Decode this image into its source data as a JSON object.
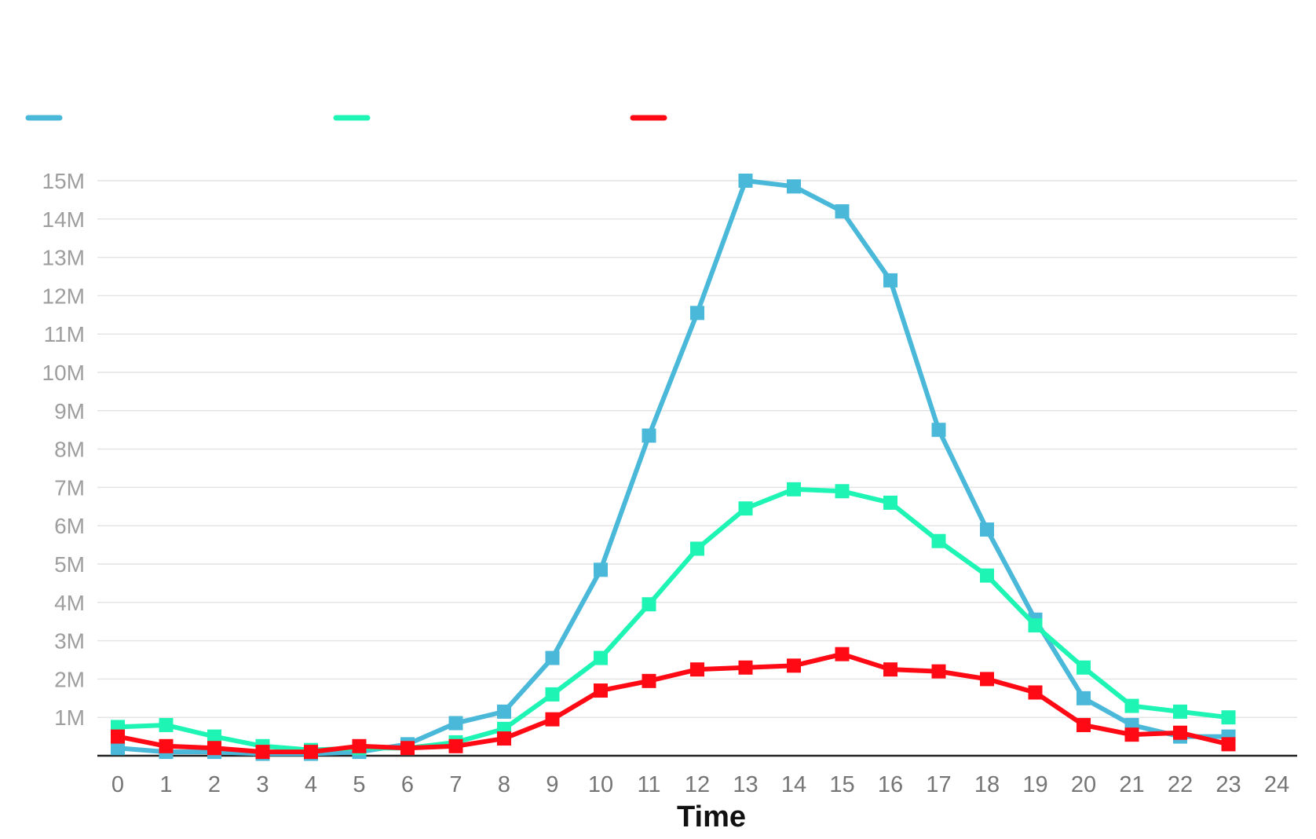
{
  "chart_data": {
    "type": "line",
    "xlabel": "Time",
    "ylabel": "",
    "x": [
      0,
      1,
      2,
      3,
      4,
      5,
      6,
      7,
      8,
      9,
      10,
      11,
      12,
      13,
      14,
      15,
      16,
      17,
      18,
      19,
      20,
      21,
      22,
      23
    ],
    "xticks": [
      0,
      1,
      2,
      3,
      4,
      5,
      6,
      7,
      8,
      9,
      10,
      11,
      12,
      13,
      14,
      15,
      16,
      17,
      18,
      19,
      20,
      21,
      22,
      23,
      24
    ],
    "xlim": [
      0,
      24
    ],
    "ylim": [
      0,
      15000000
    ],
    "yticks": [
      {
        "value": 1000000,
        "label": "1M"
      },
      {
        "value": 2000000,
        "label": "2M"
      },
      {
        "value": 3000000,
        "label": "3M"
      },
      {
        "value": 4000000,
        "label": "4M"
      },
      {
        "value": 5000000,
        "label": "5M"
      },
      {
        "value": 6000000,
        "label": "6M"
      },
      {
        "value": 7000000,
        "label": "7M"
      },
      {
        "value": 8000000,
        "label": "8M"
      },
      {
        "value": 9000000,
        "label": "9M"
      },
      {
        "value": 10000000,
        "label": "10M"
      },
      {
        "value": 11000000,
        "label": "11M"
      },
      {
        "value": 12000000,
        "label": "12M"
      },
      {
        "value": 13000000,
        "label": "13M"
      },
      {
        "value": 14000000,
        "label": "14M"
      },
      {
        "value": 15000000,
        "label": "15M"
      }
    ],
    "grid": true,
    "legend_position": "top-left",
    "marker": "square",
    "series": [
      {
        "color": "#4ab8d8",
        "values": [
          200000,
          100000,
          100000,
          50000,
          50000,
          100000,
          300000,
          850000,
          1150000,
          2550000,
          4850000,
          8350000,
          11550000,
          15000000,
          14850000,
          14200000,
          12400000,
          8500000,
          5900000,
          3550000,
          1500000,
          800000,
          500000,
          500000
        ]
      },
      {
        "color": "#1ef5b4",
        "values": [
          750000,
          800000,
          500000,
          250000,
          150000,
          200000,
          200000,
          350000,
          700000,
          1600000,
          2550000,
          3950000,
          5400000,
          6450000,
          6950000,
          6900000,
          6600000,
          5600000,
          4700000,
          3400000,
          2300000,
          1300000,
          1150000,
          1000000
        ]
      },
      {
        "color": "#ff0a14",
        "values": [
          500000,
          250000,
          200000,
          100000,
          100000,
          250000,
          200000,
          250000,
          450000,
          950000,
          1700000,
          1950000,
          2250000,
          2300000,
          2350000,
          2650000,
          2250000,
          2200000,
          2000000,
          1650000,
          800000,
          550000,
          600000,
          300000
        ]
      }
    ]
  }
}
